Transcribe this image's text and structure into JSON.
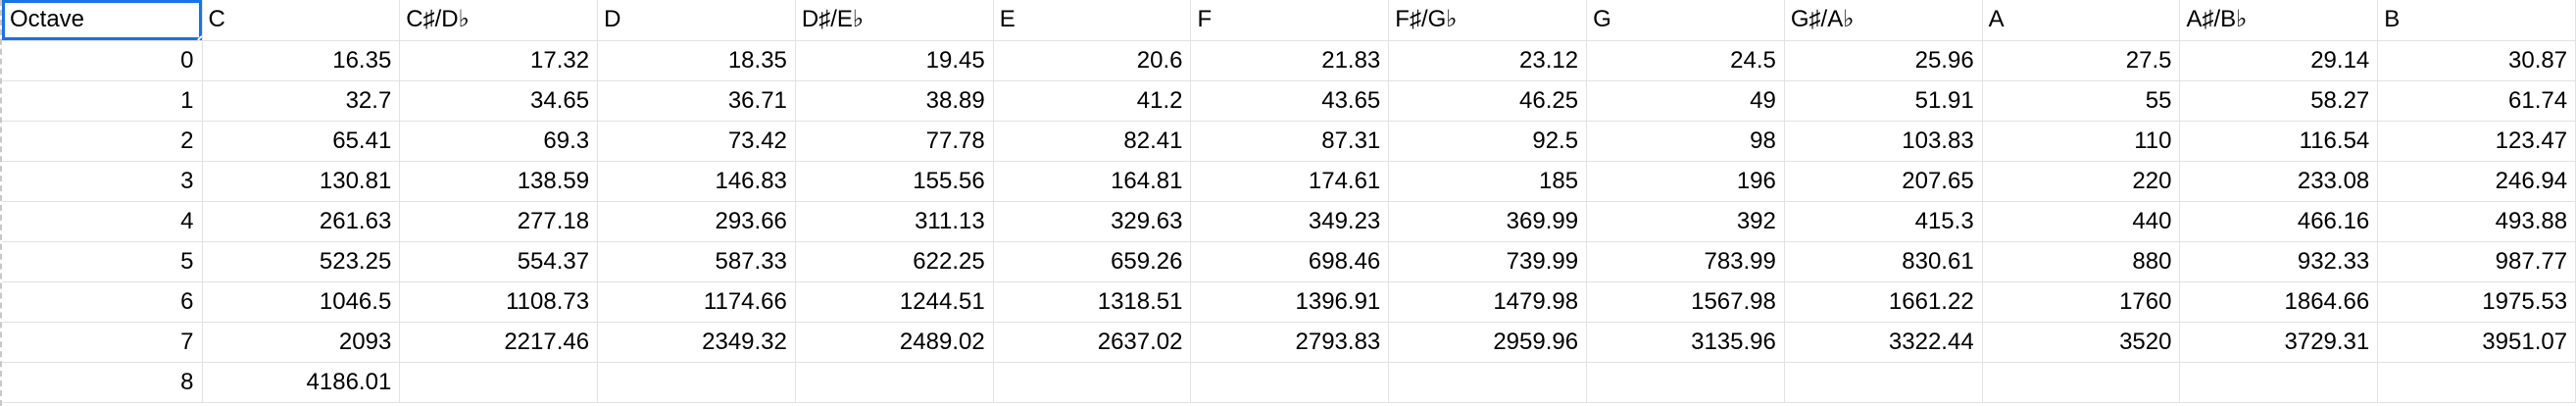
{
  "sheet": {
    "corner_label": "Octave",
    "columns": [
      "C",
      "C♯/D♭",
      "D",
      "D♯/E♭",
      "E",
      "F",
      "F♯/G♭",
      "G",
      "G♯/A♭",
      "A",
      "A♯/B♭",
      "B"
    ],
    "rows": [
      {
        "octave": "0",
        "cells": [
          "16.35",
          "17.32",
          "18.35",
          "19.45",
          "20.6",
          "21.83",
          "23.12",
          "24.5",
          "25.96",
          "27.5",
          "29.14",
          "30.87"
        ]
      },
      {
        "octave": "1",
        "cells": [
          "32.7",
          "34.65",
          "36.71",
          "38.89",
          "41.2",
          "43.65",
          "46.25",
          "49",
          "51.91",
          "55",
          "58.27",
          "61.74"
        ]
      },
      {
        "octave": "2",
        "cells": [
          "65.41",
          "69.3",
          "73.42",
          "77.78",
          "82.41",
          "87.31",
          "92.5",
          "98",
          "103.83",
          "110",
          "116.54",
          "123.47"
        ]
      },
      {
        "octave": "3",
        "cells": [
          "130.81",
          "138.59",
          "146.83",
          "155.56",
          "164.81",
          "174.61",
          "185",
          "196",
          "207.65",
          "220",
          "233.08",
          "246.94"
        ]
      },
      {
        "octave": "4",
        "cells": [
          "261.63",
          "277.18",
          "293.66",
          "311.13",
          "329.63",
          "349.23",
          "369.99",
          "392",
          "415.3",
          "440",
          "466.16",
          "493.88"
        ]
      },
      {
        "octave": "5",
        "cells": [
          "523.25",
          "554.37",
          "587.33",
          "622.25",
          "659.26",
          "698.46",
          "739.99",
          "783.99",
          "830.61",
          "880",
          "932.33",
          "987.77"
        ]
      },
      {
        "octave": "6",
        "cells": [
          "1046.5",
          "1108.73",
          "1174.66",
          "1244.51",
          "1318.51",
          "1396.91",
          "1479.98",
          "1567.98",
          "1661.22",
          "1760",
          "1864.66",
          "1975.53"
        ]
      },
      {
        "octave": "7",
        "cells": [
          "2093",
          "2217.46",
          "2349.32",
          "2489.02",
          "2637.02",
          "2793.83",
          "2959.96",
          "3135.96",
          "3322.44",
          "3520",
          "3729.31",
          "3951.07"
        ]
      },
      {
        "octave": "8",
        "cells": [
          "4186.01",
          "",
          "",
          "",
          "",
          "",
          "",
          "",
          "",
          "",
          "",
          ""
        ]
      }
    ]
  },
  "colors": {
    "selection": "#1a73e8",
    "gridline": "#e2e2e2",
    "text": "#000000"
  }
}
